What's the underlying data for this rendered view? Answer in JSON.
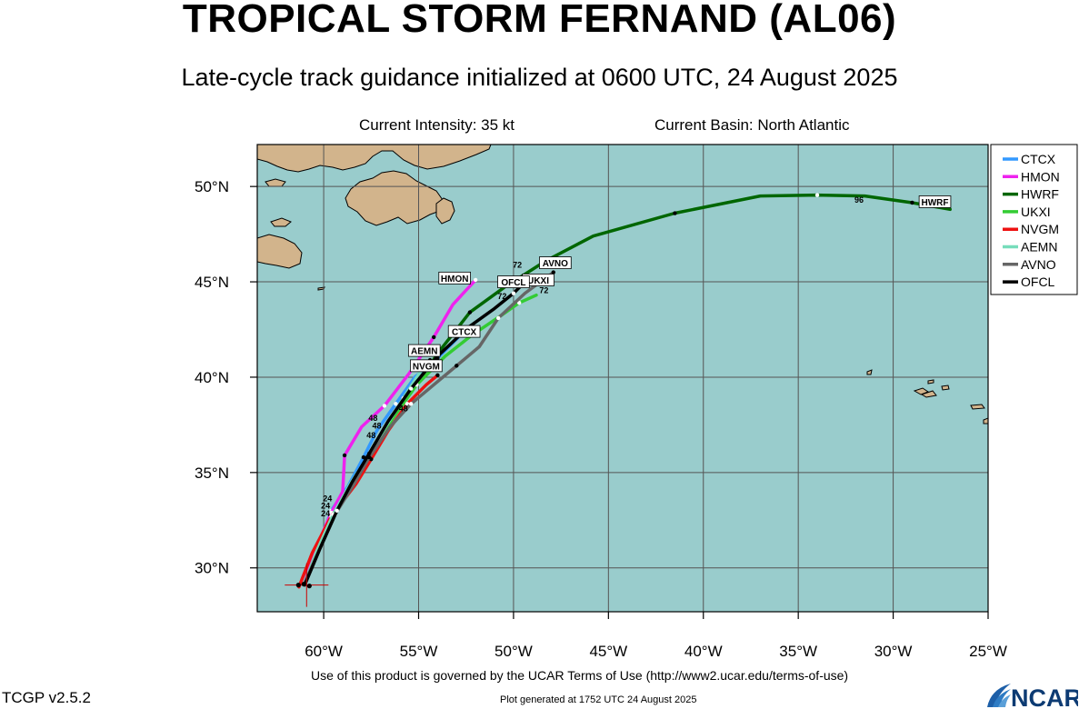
{
  "header": {
    "title": "TROPICAL STORM FERNAND (AL06)",
    "subtitle": "Late-cycle track guidance initialized at 0600 UTC, 24 August 2025",
    "intensity": "Current Intensity: 35 kt",
    "basin": "Current Basin: North Atlantic"
  },
  "footer": {
    "terms": "Use of this product is governed by the UCAR Terms of Use (http://www2.ucar.edu/terms-of-use)",
    "version": "TCGP v2.5.2",
    "generated": "Plot generated at 1752 UTC   24 August 2025",
    "logo": "NCAR"
  },
  "colors": {
    "ocean": "#99cccc",
    "land": "#d2b48c",
    "grid": "#555555"
  },
  "chart_data": {
    "type": "line",
    "title": "TROPICAL STORM FERNAND (AL06)",
    "xlim": [
      -63.5,
      -25
    ],
    "ylim": [
      27.7,
      52.2
    ],
    "x_ticks": [
      -60,
      -55,
      -50,
      -45,
      -40,
      -35,
      -30,
      -25
    ],
    "x_tick_labels": [
      "60°W",
      "55°W",
      "50°W",
      "45°W",
      "40°W",
      "35°W",
      "30°W",
      "25°W"
    ],
    "y_ticks": [
      30,
      35,
      40,
      45,
      50
    ],
    "y_tick_labels": [
      "30°N",
      "35°N",
      "40°N",
      "45°N",
      "50°N"
    ],
    "grid": true,
    "legend_placement": "right",
    "initial_position": [
      -60.9,
      29.1
    ],
    "series": [
      {
        "name": "CTCX",
        "color": "#3399ff",
        "points": [
          [
            -61.0,
            29.2
          ],
          [
            -60.3,
            31.0
          ],
          [
            -59.6,
            33.0
          ],
          [
            -58.7,
            34.3
          ],
          [
            -57.9,
            35.8
          ],
          [
            -57.2,
            37.2
          ],
          [
            -56.2,
            38.6
          ],
          [
            -55.2,
            40.0
          ],
          [
            -54.0,
            41.0
          ],
          [
            -52.5,
            42.5
          ]
        ],
        "label": "CTCX",
        "label_at": [
          -52.6,
          42.4
        ]
      },
      {
        "name": "HMON",
        "color": "#ee22ee",
        "points": [
          [
            -61.0,
            29.2
          ],
          [
            -60.5,
            30.8
          ],
          [
            -59.6,
            32.9
          ],
          [
            -59.0,
            34.0
          ],
          [
            -58.9,
            35.9
          ],
          [
            -58.0,
            37.4
          ],
          [
            -56.8,
            38.5
          ],
          [
            -55.5,
            40.2
          ],
          [
            -54.2,
            42.1
          ],
          [
            -53.2,
            43.8
          ],
          [
            -52.0,
            45.1
          ]
        ],
        "label": "HMON",
        "label_at": [
          -53.1,
          45.2
        ]
      },
      {
        "name": "HWRF",
        "color": "#006600",
        "points": [
          [
            -61.0,
            29.2
          ],
          [
            -60.3,
            30.8
          ],
          [
            -59.5,
            32.8
          ],
          [
            -58.5,
            34.4
          ],
          [
            -57.6,
            35.8
          ],
          [
            -56.6,
            37.5
          ],
          [
            -55.3,
            39.4
          ],
          [
            -53.8,
            41.5
          ],
          [
            -52.3,
            43.4
          ],
          [
            -50.5,
            44.7
          ],
          [
            -48.3,
            46.1
          ],
          [
            -45.8,
            47.4
          ],
          [
            -41.5,
            48.6
          ],
          [
            -37.0,
            49.5
          ],
          [
            -34.0,
            49.55
          ],
          [
            -31.5,
            49.5
          ],
          [
            -29.0,
            49.15
          ],
          [
            -27.0,
            48.8
          ]
        ],
        "label": "HWRF",
        "label_at": [
          -27.8,
          49.2
        ]
      },
      {
        "name": "UKXI",
        "color": "#33cc33",
        "points": [
          [
            -61.0,
            29.2
          ],
          [
            -60.3,
            30.8
          ],
          [
            -59.5,
            32.8
          ],
          [
            -58.5,
            34.4
          ],
          [
            -57.6,
            35.9
          ],
          [
            -56.4,
            37.8
          ],
          [
            -55.1,
            39.6
          ],
          [
            -53.6,
            41.1
          ],
          [
            -52.2,
            42.2
          ],
          [
            -50.7,
            43.2
          ],
          [
            -49.7,
            43.9
          ],
          [
            -48.8,
            44.3
          ]
        ],
        "label": "UKXI",
        "label_at": [
          -48.7,
          45.1
        ]
      },
      {
        "name": "NVGM",
        "color": "#ee1111",
        "points": [
          [
            -61.3,
            29.0
          ],
          [
            -60.6,
            30.8
          ],
          [
            -59.6,
            32.7
          ],
          [
            -58.3,
            34.4
          ],
          [
            -57.5,
            35.7
          ],
          [
            -56.6,
            37.2
          ],
          [
            -55.6,
            38.6
          ],
          [
            -54.6,
            39.6
          ],
          [
            -54.0,
            40.1
          ]
        ],
        "label": "NVGM",
        "label_at": [
          -54.6,
          40.6
        ]
      },
      {
        "name": "AEMN",
        "color": "#77ddbb",
        "points": [
          [
            -61.0,
            29.2
          ],
          [
            -60.4,
            30.8
          ],
          [
            -59.5,
            32.8
          ],
          [
            -58.6,
            34.4
          ],
          [
            -57.7,
            35.8
          ],
          [
            -56.8,
            37.3
          ],
          [
            -55.8,
            38.9
          ],
          [
            -54.9,
            40.3
          ],
          [
            -54.4,
            40.9
          ]
        ],
        "label": "AEMN",
        "label_at": [
          -54.7,
          41.4
        ]
      },
      {
        "name": "AVNO",
        "color": "#666666",
        "points": [
          [
            -61.0,
            29.2
          ],
          [
            -60.3,
            30.8
          ],
          [
            -59.4,
            32.8
          ],
          [
            -58.4,
            34.4
          ],
          [
            -57.6,
            35.8
          ],
          [
            -56.5,
            37.4
          ],
          [
            -55.4,
            38.6
          ],
          [
            -54.2,
            39.6
          ],
          [
            -53.0,
            40.6
          ],
          [
            -51.8,
            41.6
          ],
          [
            -50.8,
            43.1
          ],
          [
            -49.4,
            44.4
          ],
          [
            -47.9,
            45.5
          ]
        ],
        "label": "AVNO",
        "label_at": [
          -47.8,
          46.0
        ]
      },
      {
        "name": "OFCL",
        "color": "#000000",
        "points": [
          [
            -61.0,
            29.1
          ],
          [
            -60.2,
            31.0
          ],
          [
            -59.3,
            33.0
          ],
          [
            -58.5,
            34.5
          ],
          [
            -57.6,
            36.0
          ],
          [
            -56.6,
            37.7
          ],
          [
            -55.4,
            39.4
          ],
          [
            -54.0,
            41.1
          ],
          [
            -52.4,
            42.6
          ],
          [
            -51.0,
            43.6
          ],
          [
            -50.0,
            44.4
          ],
          [
            -49.4,
            45.0
          ]
        ],
        "label": "OFCL",
        "label_at": [
          -50.0,
          45.0
        ]
      }
    ],
    "hour_labels": [
      {
        "text": "96",
        "at": [
          -31.8,
          49.15
        ],
        "color": "#000000"
      },
      {
        "text": "72",
        "at": [
          -49.8,
          45.75
        ],
        "color": "#000000"
      },
      {
        "text": "72",
        "at": [
          -50.6,
          44.1
        ],
        "color": "#000000"
      },
      {
        "text": "72",
        "at": [
          -48.4,
          44.4
        ],
        "color": "#000000"
      },
      {
        "text": "48",
        "at": [
          -55.8,
          38.2
        ],
        "color": "#000000"
      },
      {
        "text": "48",
        "at": [
          -57.4,
          37.7
        ],
        "color": "#000000"
      },
      {
        "text": "48",
        "at": [
          -57.2,
          37.3
        ],
        "color": "#000000"
      },
      {
        "text": "48",
        "at": [
          -57.5,
          36.8
        ],
        "color": "#000000"
      },
      {
        "text": "24",
        "at": [
          -59.8,
          33.5
        ],
        "color": "#000000"
      },
      {
        "text": "24",
        "at": [
          -59.9,
          33.1
        ],
        "color": "#000000"
      },
      {
        "text": "24",
        "at": [
          -59.9,
          32.7
        ],
        "color": "#000000"
      }
    ],
    "legend": [
      "CTCX",
      "HMON",
      "HWRF",
      "UKXI",
      "NVGM",
      "AEMN",
      "AVNO",
      "OFCL"
    ]
  }
}
